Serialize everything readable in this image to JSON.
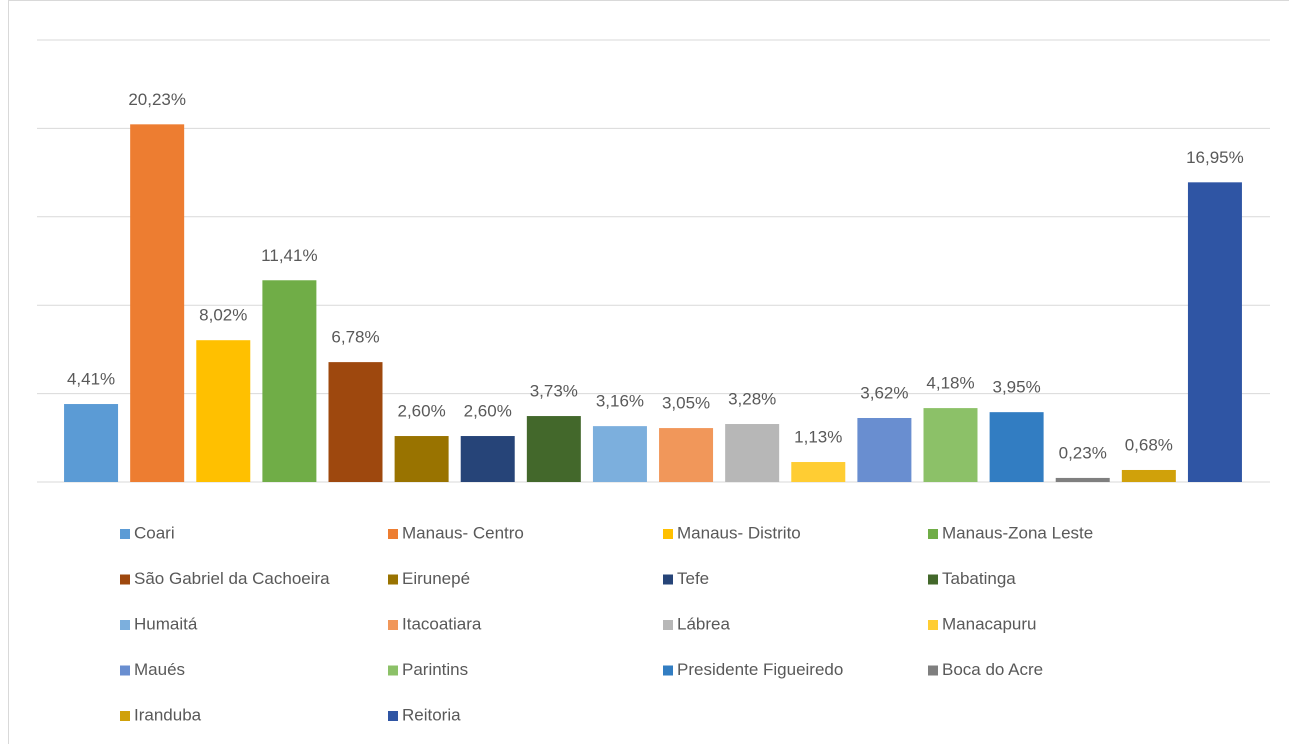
{
  "chart_data": {
    "type": "bar",
    "categories": [
      "Coari",
      "Manaus- Centro",
      "Manaus- Distrito",
      "Manaus-Zona Leste",
      "São Gabriel da Cachoeira",
      "Eirunepé",
      "Tefe",
      "Tabatinga",
      "Humaitá",
      "Itacoatiara",
      "Lábrea",
      "Manacapuru",
      "Maués",
      "Parintins",
      "Presidente Figueiredo",
      "Boca do Acre",
      "Iranduba",
      "Reitoria"
    ],
    "values": [
      4.41,
      20.23,
      8.02,
      11.41,
      6.78,
      2.6,
      2.6,
      3.73,
      3.16,
      3.05,
      3.28,
      1.13,
      3.62,
      4.18,
      3.95,
      0.23,
      0.68,
      16.95
    ],
    "value_labels": [
      "4,41%",
      "20,23%",
      "8,02%",
      "11,41%",
      "6,78%",
      "2,60%",
      "2,60%",
      "3,73%",
      "3,16%",
      "3,05%",
      "3,28%",
      "1,13%",
      "3,62%",
      "4,18%",
      "3,95%",
      "0,23%",
      "0,68%",
      "16,95%"
    ],
    "colors": [
      "#5b9bd5",
      "#ed7d31",
      "#ffc000",
      "#70ad47",
      "#9e480e",
      "#997300",
      "#264478",
      "#43682b",
      "#7cafdd",
      "#f1975a",
      "#b7b7b7",
      "#ffcd33",
      "#698ed0",
      "#8cc168",
      "#327dc2",
      "#7f7f7f",
      "#d0a10a",
      "#2f55a4"
    ],
    "ylim": [
      0,
      25
    ],
    "yticks": [
      0,
      5,
      10,
      15,
      20,
      25
    ],
    "grid": true,
    "legend": "bottom"
  }
}
